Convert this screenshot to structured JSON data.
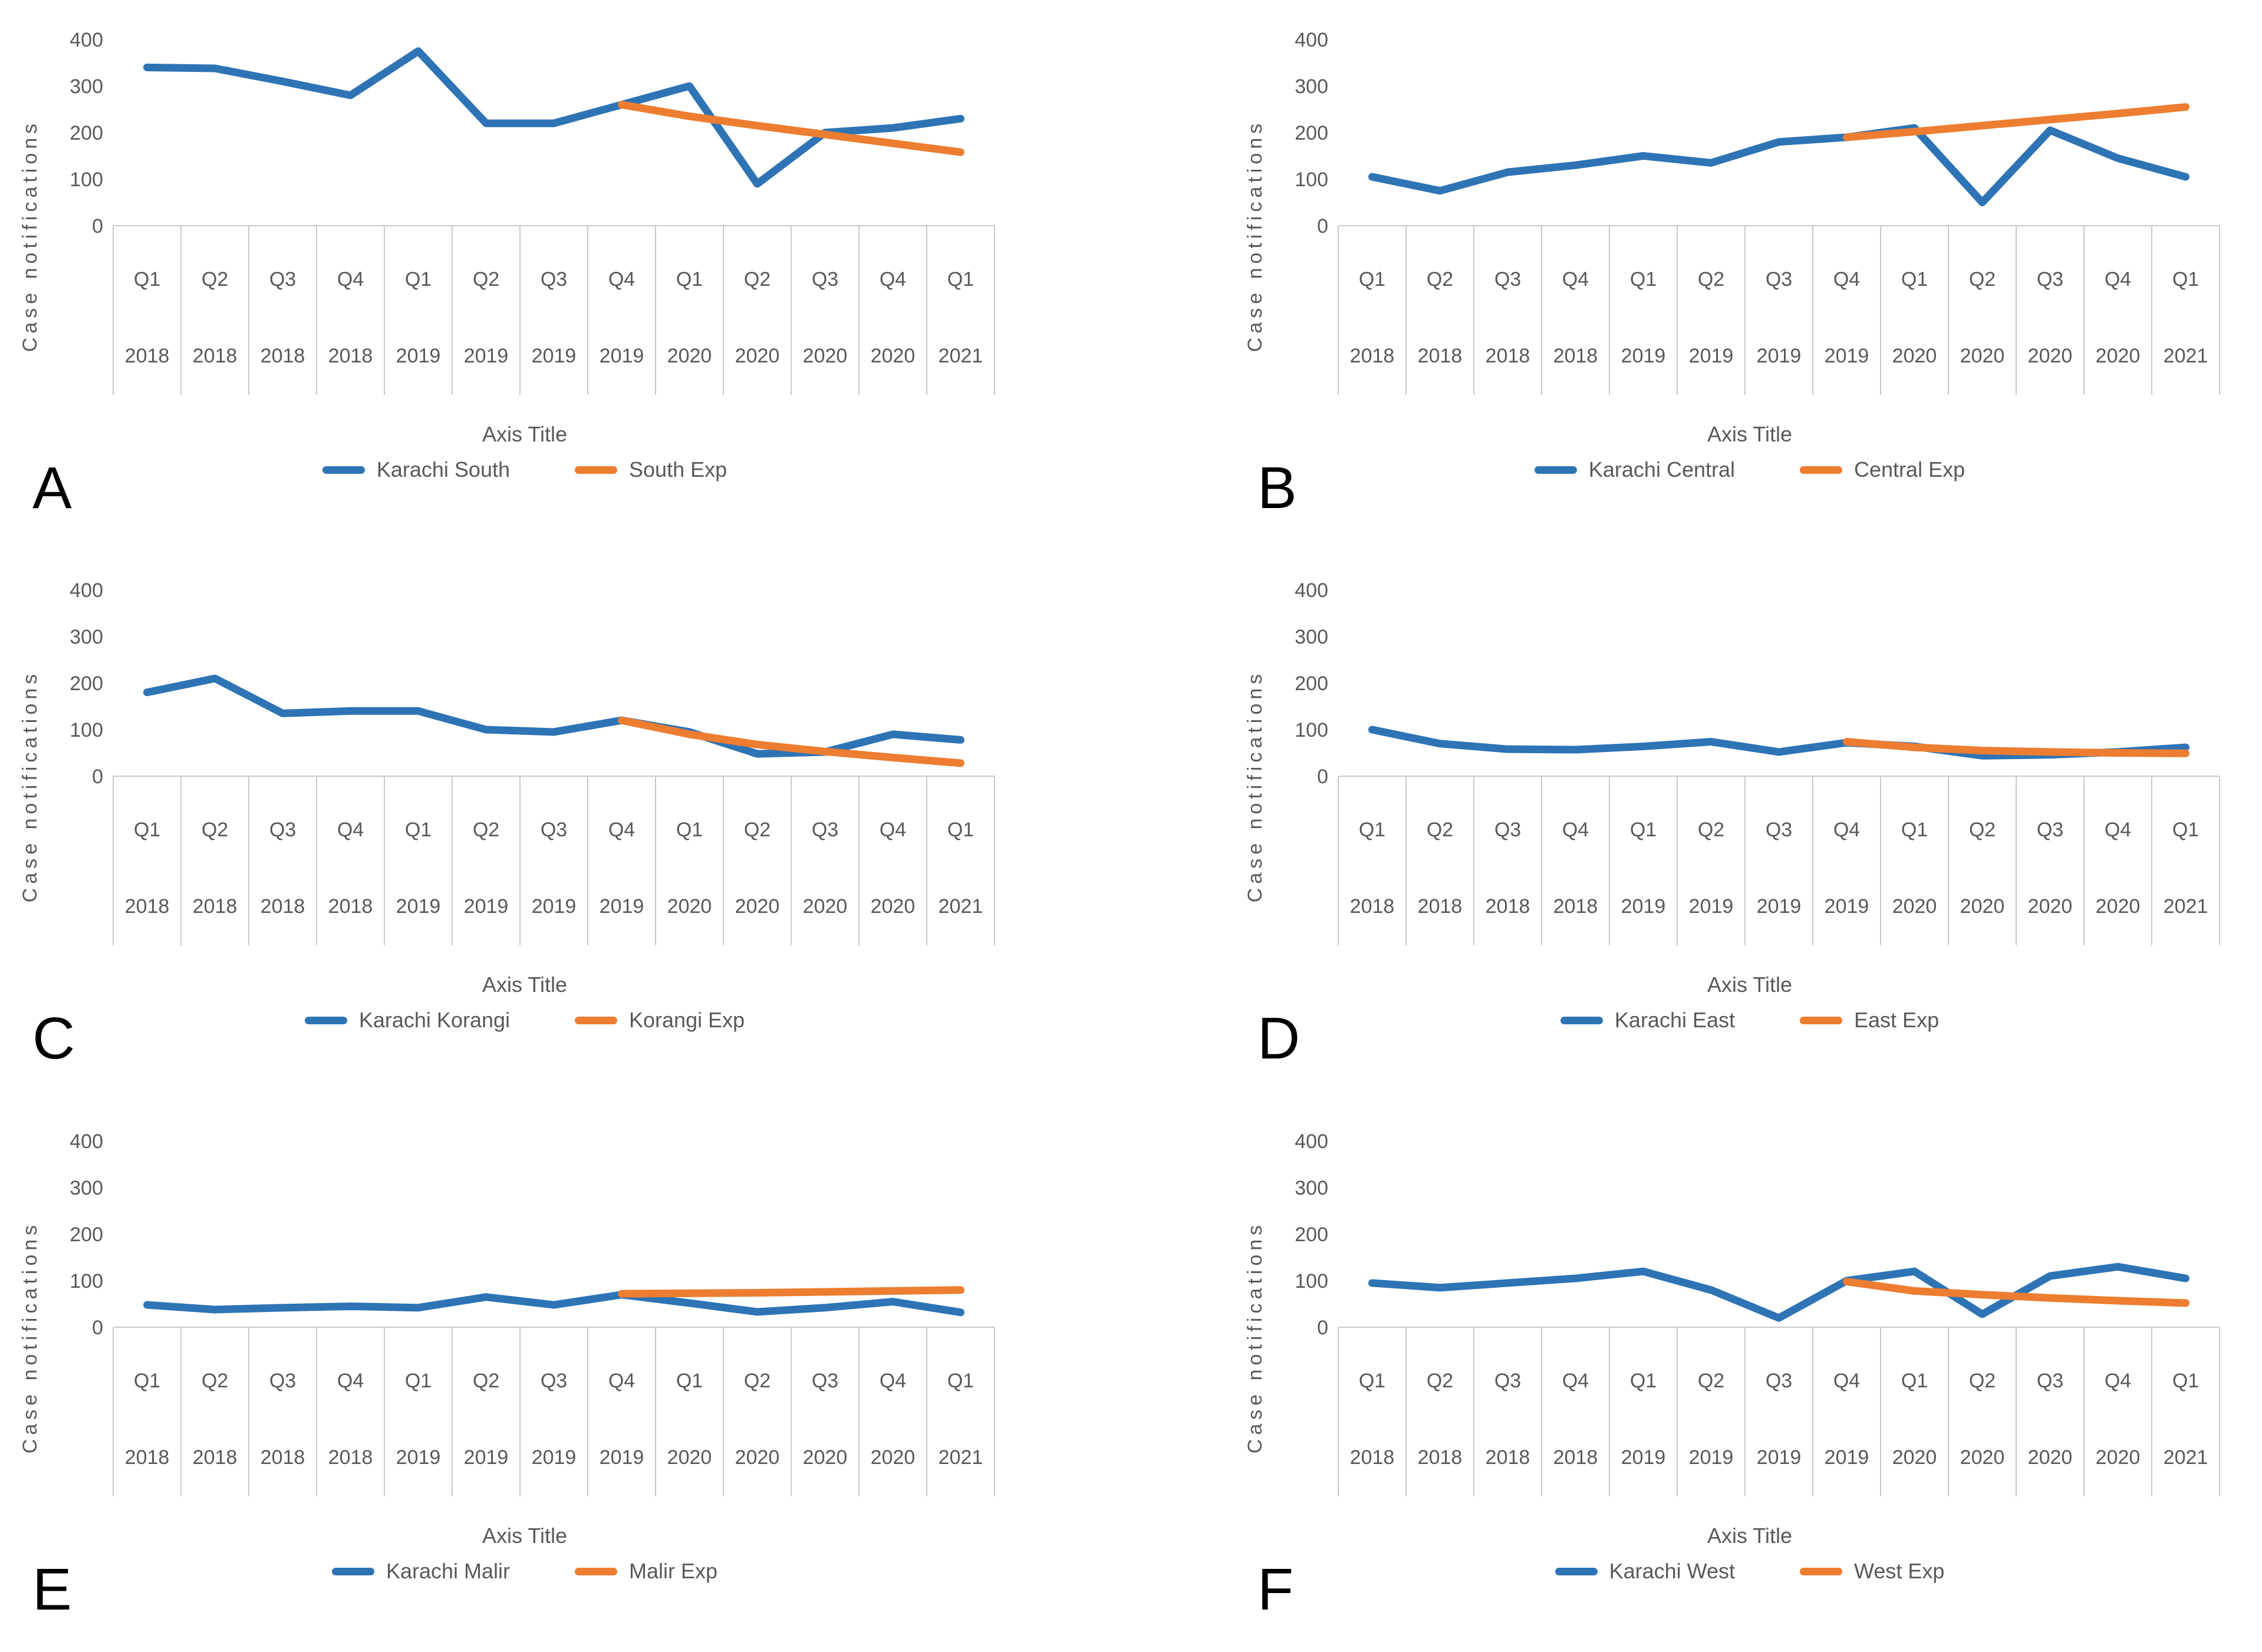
{
  "colors": {
    "series_blue": "#2E74B5",
    "series_orange": "#ED7D31",
    "axis_text": "#595959",
    "grid_line": "#C9C9C9",
    "panel_letter": "#000000",
    "background": "#FFFFFF"
  },
  "axis": {
    "ylabel": "Case notifications",
    "xlabel": "Axis Title",
    "yticks": [
      400,
      300,
      200,
      100,
      0
    ],
    "ylim": [
      0,
      400
    ],
    "quarter_labels": [
      "Q1",
      "Q2",
      "Q3",
      "Q4",
      "Q1",
      "Q2",
      "Q3",
      "Q4",
      "Q1",
      "Q2",
      "Q3",
      "Q4",
      "Q1"
    ],
    "year_labels": [
      "2018",
      "2018",
      "2018",
      "2018",
      "2019",
      "2019",
      "2019",
      "2019",
      "2020",
      "2020",
      "2020",
      "2020",
      "2021"
    ]
  },
  "chart_data": [
    {
      "panel": "A",
      "type": "line",
      "ylim": [
        0,
        400
      ],
      "grid": false,
      "legend_position": "bottom",
      "categories": [
        "Q1 2018",
        "Q2 2018",
        "Q3 2018",
        "Q4 2018",
        "Q1 2019",
        "Q2 2019",
        "Q3 2019",
        "Q4 2019",
        "Q1 2020",
        "Q2 2020",
        "Q3 2020",
        "Q4 2020",
        "Q1 2021"
      ],
      "series": [
        {
          "name": "Karachi South",
          "color_key": "series_blue",
          "values": [
            340,
            338,
            310,
            280,
            375,
            220,
            220,
            260,
            300,
            90,
            200,
            210,
            230
          ]
        },
        {
          "name": "South Exp",
          "color_key": "series_orange",
          "values": [
            null,
            null,
            null,
            null,
            null,
            null,
            null,
            260,
            235,
            215,
            196,
            177,
            158
          ]
        }
      ]
    },
    {
      "panel": "B",
      "type": "line",
      "ylim": [
        0,
        400
      ],
      "grid": false,
      "legend_position": "bottom",
      "categories": [
        "Q1 2018",
        "Q2 2018",
        "Q3 2018",
        "Q4 2018",
        "Q1 2019",
        "Q2 2019",
        "Q3 2019",
        "Q4 2019",
        "Q1 2020",
        "Q2 2020",
        "Q3 2020",
        "Q4 2020",
        "Q1 2021"
      ],
      "series": [
        {
          "name": "Karachi Central",
          "color_key": "series_blue",
          "values": [
            105,
            75,
            115,
            130,
            150,
            135,
            180,
            190,
            210,
            50,
            205,
            145,
            105
          ]
        },
        {
          "name": "Central Exp",
          "color_key": "series_orange",
          "values": [
            null,
            null,
            null,
            null,
            null,
            null,
            null,
            190,
            202,
            215,
            228,
            241,
            255
          ]
        }
      ]
    },
    {
      "panel": "C",
      "type": "line",
      "ylim": [
        0,
        400
      ],
      "grid": false,
      "legend_position": "bottom",
      "categories": [
        "Q1 2018",
        "Q2 2018",
        "Q3 2018",
        "Q4 2018",
        "Q1 2019",
        "Q2 2019",
        "Q3 2019",
        "Q4 2019",
        "Q1 2020",
        "Q2 2020",
        "Q3 2020",
        "Q4 2020",
        "Q1 2021"
      ],
      "series": [
        {
          "name": "Karachi Korangi",
          "color_key": "series_blue",
          "values": [
            180,
            210,
            135,
            140,
            140,
            100,
            95,
            120,
            95,
            48,
            52,
            90,
            78
          ]
        },
        {
          "name": "Korangi Exp",
          "color_key": "series_orange",
          "values": [
            null,
            null,
            null,
            null,
            null,
            null,
            null,
            120,
            90,
            68,
            53,
            40,
            28
          ]
        }
      ]
    },
    {
      "panel": "D",
      "type": "line",
      "ylim": [
        0,
        400
      ],
      "grid": false,
      "legend_position": "bottom",
      "categories": [
        "Q1 2018",
        "Q2 2018",
        "Q3 2018",
        "Q4 2018",
        "Q1 2019",
        "Q2 2019",
        "Q3 2019",
        "Q4 2019",
        "Q1 2020",
        "Q2 2020",
        "Q3 2020",
        "Q4 2020",
        "Q1 2021"
      ],
      "series": [
        {
          "name": "Karachi East",
          "color_key": "series_blue",
          "values": [
            100,
            70,
            58,
            57,
            64,
            74,
            52,
            72,
            64,
            44,
            46,
            52,
            62
          ]
        },
        {
          "name": "East Exp",
          "color_key": "series_orange",
          "values": [
            null,
            null,
            null,
            null,
            null,
            null,
            null,
            74,
            62,
            55,
            52,
            50,
            49
          ]
        }
      ]
    },
    {
      "panel": "E",
      "type": "line",
      "ylim": [
        0,
        400
      ],
      "grid": false,
      "legend_position": "bottom",
      "categories": [
        "Q1 2018",
        "Q2 2018",
        "Q3 2018",
        "Q4 2018",
        "Q1 2019",
        "Q2 2019",
        "Q3 2019",
        "Q4 2019",
        "Q1 2020",
        "Q2 2020",
        "Q3 2020",
        "Q4 2020",
        "Q1 2021"
      ],
      "series": [
        {
          "name": "Karachi Malir",
          "color_key": "series_blue",
          "values": [
            48,
            38,
            42,
            45,
            42,
            65,
            48,
            70,
            52,
            33,
            42,
            55,
            32
          ]
        },
        {
          "name": "Malir Exp",
          "color_key": "series_orange",
          "values": [
            null,
            null,
            null,
            null,
            null,
            null,
            null,
            72,
            73,
            74,
            76,
            78,
            80
          ]
        }
      ]
    },
    {
      "panel": "F",
      "type": "line",
      "ylim": [
        0,
        400
      ],
      "grid": false,
      "legend_position": "bottom",
      "categories": [
        "Q1 2018",
        "Q2 2018",
        "Q3 2018",
        "Q4 2018",
        "Q1 2019",
        "Q2 2019",
        "Q3 2019",
        "Q4 2019",
        "Q1 2020",
        "Q2 2020",
        "Q3 2020",
        "Q4 2020",
        "Q1 2021"
      ],
      "series": [
        {
          "name": "Karachi West",
          "color_key": "series_blue",
          "values": [
            95,
            85,
            95,
            105,
            120,
            80,
            20,
            100,
            120,
            28,
            110,
            130,
            105
          ]
        },
        {
          "name": "West Exp",
          "color_key": "series_orange",
          "values": [
            null,
            null,
            null,
            null,
            null,
            null,
            null,
            98,
            78,
            70,
            63,
            57,
            52
          ]
        }
      ]
    }
  ]
}
